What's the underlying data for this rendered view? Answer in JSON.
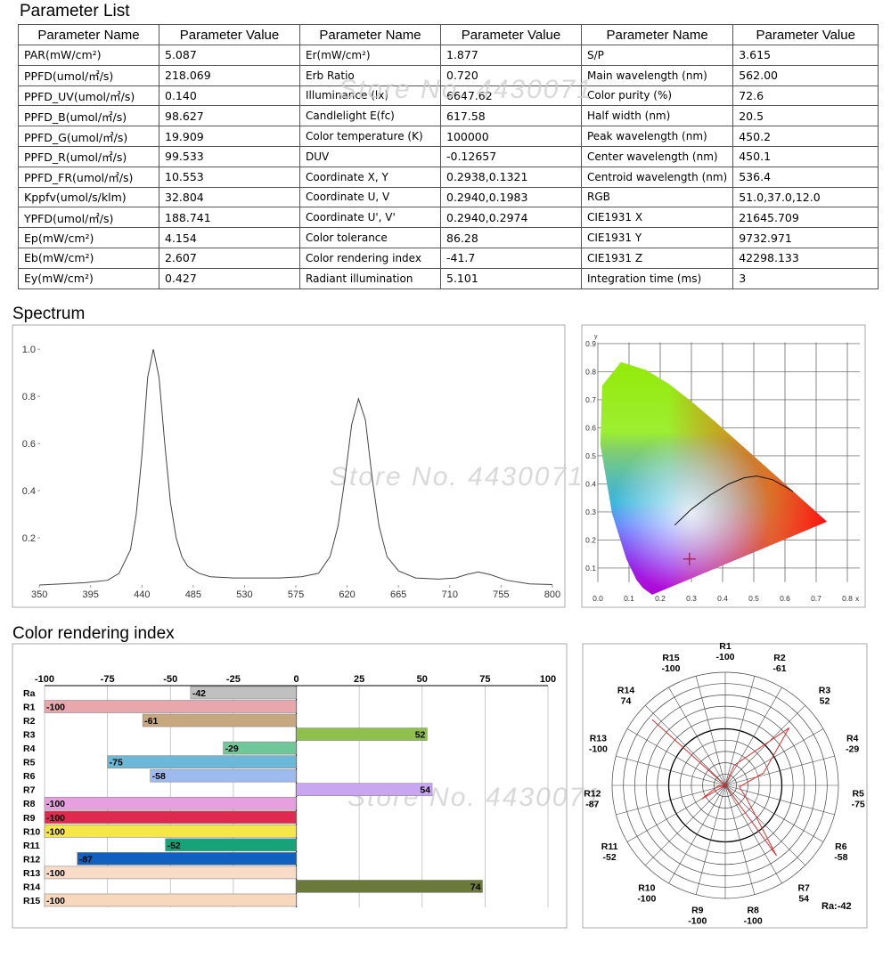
{
  "watermark": "Store No. 4430071",
  "table": {
    "title": "Parameter List",
    "headers": [
      "Parameter Name",
      "Parameter Value",
      "Parameter Name",
      "Parameter Value",
      "Parameter Name",
      "Parameter Value"
    ],
    "rows": [
      [
        "PAR(mW/cm²)",
        "5.087",
        "Er(mW/cm²)",
        "1.877",
        "S/P",
        "3.615"
      ],
      [
        "PPFD(umol/㎡/s)",
        "218.069",
        "Erb Ratio",
        "0.720",
        "Main wavelength (nm)",
        "562.00"
      ],
      [
        "PPFD_UV(umol/㎡/s)",
        "0.140",
        "Illuminance (lx)",
        "6647.62",
        "Color purity (%)",
        "72.6"
      ],
      [
        "PPFD_B(umol/㎡/s)",
        "98.627",
        "Candlelight E(fc)",
        "617.58",
        "Half width (nm)",
        "20.5"
      ],
      [
        "PPFD_G(umol/㎡/s)",
        "19.909",
        "Color temperature (K)",
        "100000",
        "Peak wavelength (nm)",
        "450.2"
      ],
      [
        "PPFD_R(umol/㎡/s)",
        "99.533",
        "DUV",
        "-0.12657",
        "Center wavelength (nm)",
        "450.1"
      ],
      [
        "PPFD_FR(umol/㎡/s)",
        "10.553",
        "Coordinate X, Y",
        "0.2938,0.1321",
        "Centroid wavelength (nm)",
        "536.4"
      ],
      [
        "Kppfv(umol/s/klm)",
        "32.804",
        "Coordinate U, V",
        "0.2940,0.1983",
        "RGB",
        "51.0,37.0,12.0"
      ],
      [
        "YPFD(umol/㎡/s)",
        "188.741",
        "Coordinate U', V'",
        "0.2940,0.2974",
        "CIE1931 X",
        "21645.709"
      ],
      [
        "Ep(mW/cm²)",
        "4.154",
        "Color tolerance",
        "86.28",
        "CIE1931 Y",
        "9732.971"
      ],
      [
        "Eb(mW/cm²)",
        "2.607",
        "Color rendering index",
        "-41.7",
        "CIE1931 Z",
        "42298.133"
      ],
      [
        "Ey(mW/cm²)",
        "0.427",
        "Radiant illumination",
        "5.101",
        "Integration time (ms)",
        "3"
      ]
    ]
  },
  "chart_data": [
    {
      "type": "line",
      "title": "Spectrum",
      "color": "#444",
      "x": [
        350,
        370,
        390,
        410,
        420,
        430,
        435,
        440,
        445,
        450,
        455,
        460,
        465,
        470,
        475,
        480,
        490,
        500,
        520,
        540,
        560,
        580,
        595,
        605,
        612,
        618,
        624,
        630,
        636,
        642,
        648,
        655,
        665,
        680,
        700,
        715,
        725,
        735,
        745,
        760,
        780,
        800
      ],
      "values": [
        0,
        0.005,
        0.01,
        0.02,
        0.05,
        0.15,
        0.3,
        0.55,
        0.88,
        1.0,
        0.88,
        0.6,
        0.35,
        0.2,
        0.12,
        0.08,
        0.05,
        0.035,
        0.03,
        0.03,
        0.03,
        0.035,
        0.05,
        0.12,
        0.25,
        0.45,
        0.68,
        0.79,
        0.7,
        0.45,
        0.25,
        0.12,
        0.06,
        0.03,
        0.025,
        0.03,
        0.045,
        0.055,
        0.045,
        0.02,
        0.005,
        0.002
      ],
      "xlim": [
        328,
        811
      ],
      "ylim": [
        0,
        1.08
      ],
      "xticks": [
        350,
        395,
        440,
        485,
        530,
        575,
        620,
        665,
        710,
        755,
        800
      ],
      "yticks": [
        0.2,
        0.4,
        0.6,
        0.8,
        {
          "value": 1,
          "label": "1.0"
        }
      ]
    },
    {
      "type": "cie",
      "x_label": "x",
      "y_label": "y",
      "grid": true,
      "xlim": [
        -0.03,
        0.84
      ],
      "ylim": [
        0.05,
        0.93
      ],
      "xticks": [
        {
          "value": 0,
          "label": "0.0"
        },
        0.1,
        0.2,
        0.3,
        0.4,
        0.5,
        0.6,
        0.7,
        0.8
      ],
      "yticks": [
        0.1,
        0.2,
        0.3,
        0.4,
        0.5,
        0.6,
        0.7,
        0.8,
        0.9
      ],
      "point": {
        "x": 0.2938,
        "y": 0.1321
      },
      "point_color": "#b01030"
    },
    {
      "type": "bar",
      "orientation": "horizontal",
      "title": "Color rendering index",
      "categories": [
        "Ra",
        "R1",
        "R2",
        "R3",
        "R4",
        "R5",
        "R6",
        "R7",
        "R8",
        "R9",
        "R10",
        "R11",
        "R12",
        "R13",
        "R14",
        "R15"
      ],
      "values": [
        -42,
        -100,
        -61,
        52,
        -29,
        -75,
        -58,
        54,
        -100,
        -100,
        -100,
        -52,
        -87,
        -100,
        74,
        -100
      ],
      "colors": [
        "#c0c0c0",
        "#e8a6ad",
        "#c7a77d",
        "#8fbf4f",
        "#6fc79a",
        "#6cb8d8",
        "#9ebbf0",
        "#c9a6f0",
        "#e89fe0",
        "#e0294f",
        "#f5e64a",
        "#17a37a",
        "#1060c0",
        "#f8dcc8",
        "#6b7a3a",
        "#f8d8bc"
      ],
      "xlim": [
        -100,
        100
      ],
      "xticks": [
        -100,
        -75,
        -50,
        -25,
        0,
        25,
        50,
        75,
        100
      ]
    },
    {
      "type": "polar",
      "categories": [
        "R1",
        "R2",
        "R3",
        "R4",
        "R5",
        "R6",
        "R7",
        "R8",
        "R9",
        "R10",
        "R11",
        "R12",
        "R13",
        "R14",
        "R15"
      ],
      "values": [
        -100,
        -61,
        52,
        -29,
        -75,
        -58,
        54,
        -100,
        -100,
        -100,
        -52,
        -87,
        -100,
        74,
        -100
      ],
      "rlim": [
        -100,
        100
      ],
      "color": "#e03030",
      "annotation": "Ra:-42"
    }
  ]
}
